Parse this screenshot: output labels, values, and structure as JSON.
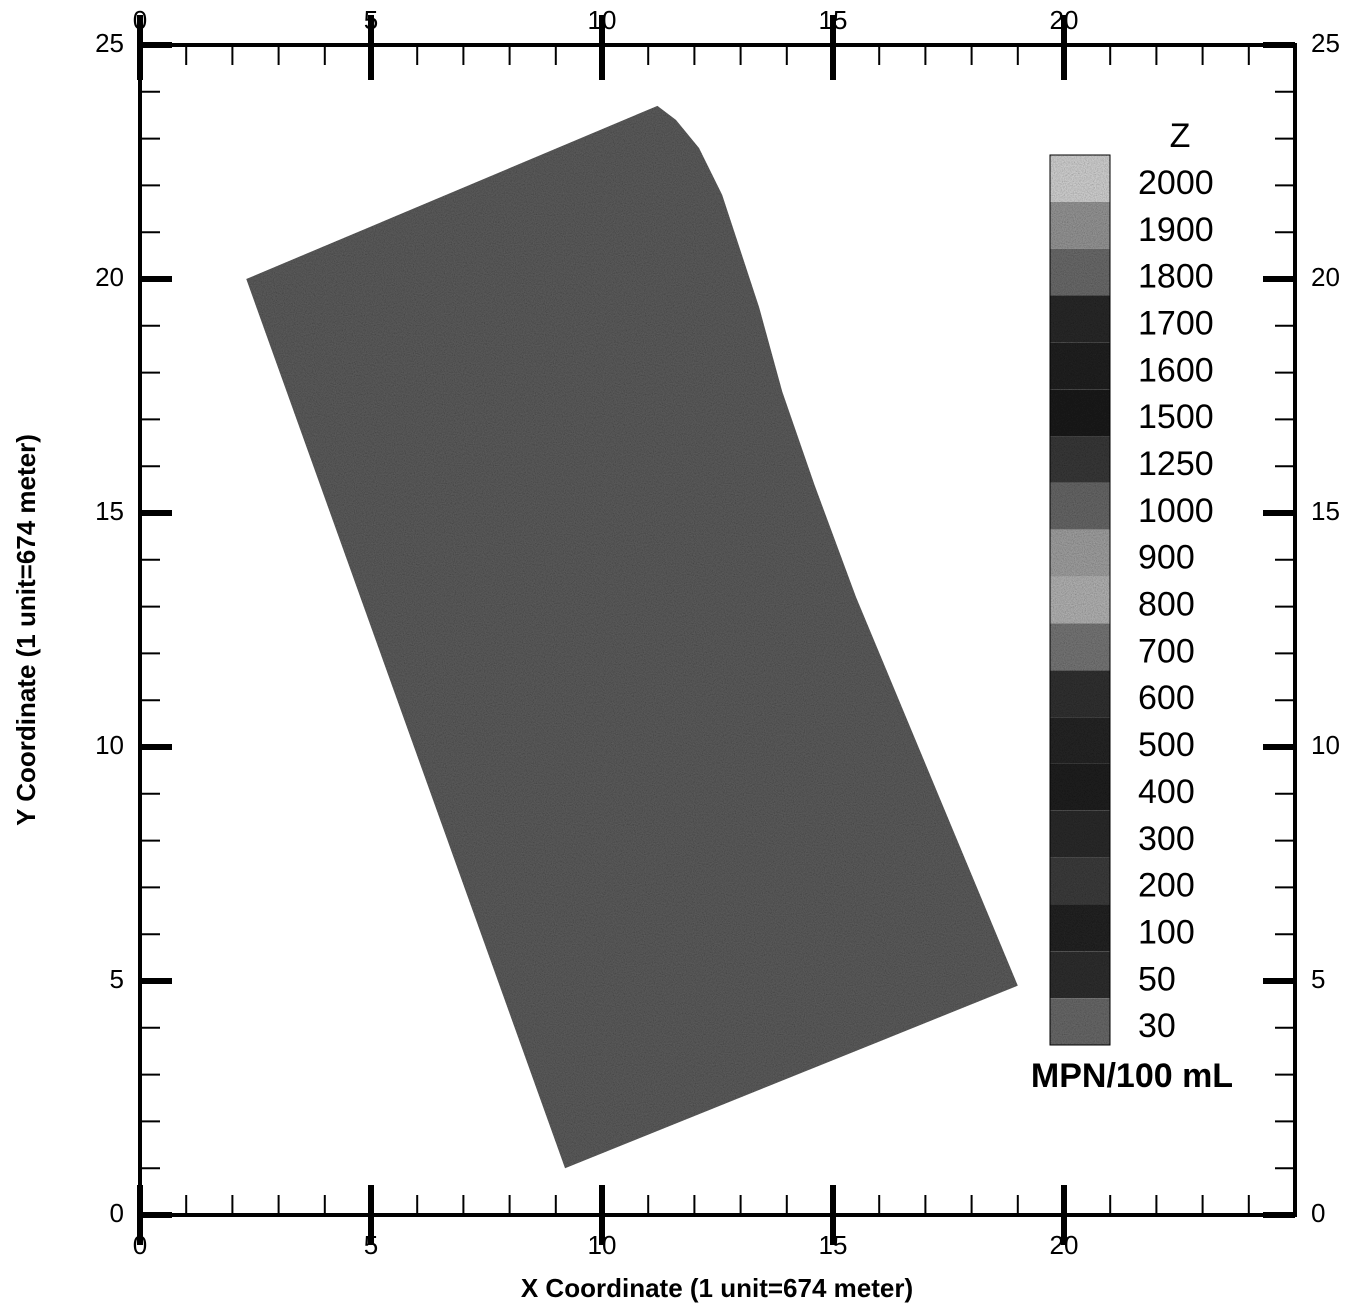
{
  "chart_data": {
    "type": "contour",
    "xlabel": "X Coordinate (1 unit=674 meter)",
    "ylabel": "Y Coordinate (1 unit=674 meter)",
    "xlim": [
      0,
      25
    ],
    "ylim": [
      0,
      25
    ],
    "xticks": [
      0,
      5,
      10,
      15,
      20
    ],
    "yticks": [
      0,
      5,
      10,
      15,
      20,
      25
    ],
    "xminorticks": [
      1,
      2,
      3,
      4,
      6,
      7,
      8,
      9,
      11,
      12,
      13,
      14,
      16,
      17,
      18,
      19,
      21,
      22,
      23,
      24
    ],
    "yminorticks": [
      1,
      2,
      3,
      4,
      6,
      7,
      8,
      9,
      11,
      12,
      13,
      14,
      16,
      17,
      18,
      19,
      21,
      22,
      23,
      24
    ],
    "region": {
      "x": [
        2.3,
        11.2,
        11.6,
        12.1,
        12.6,
        13.0,
        13.4,
        13.9,
        14.6,
        15.5,
        19.0,
        9.2
      ],
      "y": [
        20.0,
        23.7,
        23.4,
        22.8,
        21.8,
        20.6,
        19.4,
        17.6,
        15.6,
        13.2,
        4.9,
        1.0
      ],
      "color": "#5f5f5f"
    },
    "colorbar": {
      "title": "Z",
      "unit": "MPN/100 mL",
      "levels": [
        2000,
        1900,
        1800,
        1700,
        1600,
        1500,
        1250,
        1000,
        900,
        800,
        700,
        600,
        500,
        400,
        300,
        200,
        100,
        50,
        30
      ],
      "colors": [
        "#d8d8d8",
        "#9a9a9a",
        "#6e6e6e",
        "#2a2a2a",
        "#222222",
        "#1c1c1c",
        "#3a3a3a",
        "#6a6a6a",
        "#a5a5a5",
        "#b8b8b8",
        "#7a7a7a",
        "#333333",
        "#262626",
        "#202020",
        "#2c2c2c",
        "#3e3e3e",
        "#242424",
        "#303030",
        "#6c6c6c"
      ]
    }
  }
}
